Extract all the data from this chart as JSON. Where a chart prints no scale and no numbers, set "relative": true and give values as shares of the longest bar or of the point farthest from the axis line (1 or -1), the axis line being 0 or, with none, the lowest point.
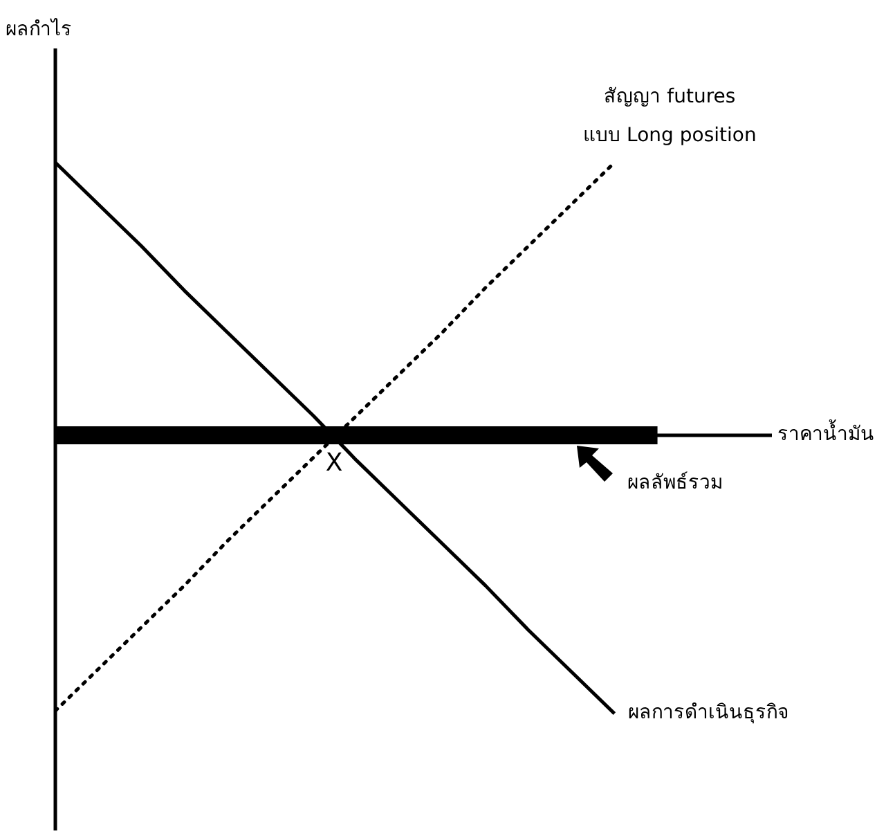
{
  "chart_data": {
    "type": "line",
    "relative": true,
    "categories": [
      null,
      null,
      null,
      null,
      null,
      null,
      null,
      null,
      null,
      null,
      null,
      null,
      null,
      null,
      null
    ],
    "series": [
      {
        "name": "ผลการดำเนินธุรกิจ",
        "color": "#000000",
        "line_style": "solid",
        "values": [
          0.98,
          0.83,
          0.68,
          0.52,
          0.37,
          0.22,
          0.07,
          -0.09,
          -0.24,
          -0.39,
          -0.54,
          -0.7,
          -0.85,
          -1.0,
          null
        ]
      },
      {
        "name": "สัญญา futures แบบ Long position",
        "color": "#000000",
        "line_style": "dotted",
        "values": [
          -0.99,
          -0.84,
          -0.69,
          -0.54,
          -0.38,
          -0.23,
          -0.08,
          0.07,
          0.22,
          0.37,
          0.53,
          0.68,
          0.83,
          0.98,
          null
        ]
      },
      {
        "name": "ผลลัพธ์รวม",
        "color": "#000000",
        "line_style": "solid",
        "values": [
          0,
          0,
          0,
          0,
          0,
          0,
          0,
          0,
          0,
          0,
          0,
          0,
          0,
          0,
          0
        ]
      }
    ],
    "annotations": [
      {
        "text": "X",
        "y": 0
      },
      "ราคาน้ำมัน",
      "ผลกำไร"
    ],
    "marker": "none",
    "legend": false
  }
}
